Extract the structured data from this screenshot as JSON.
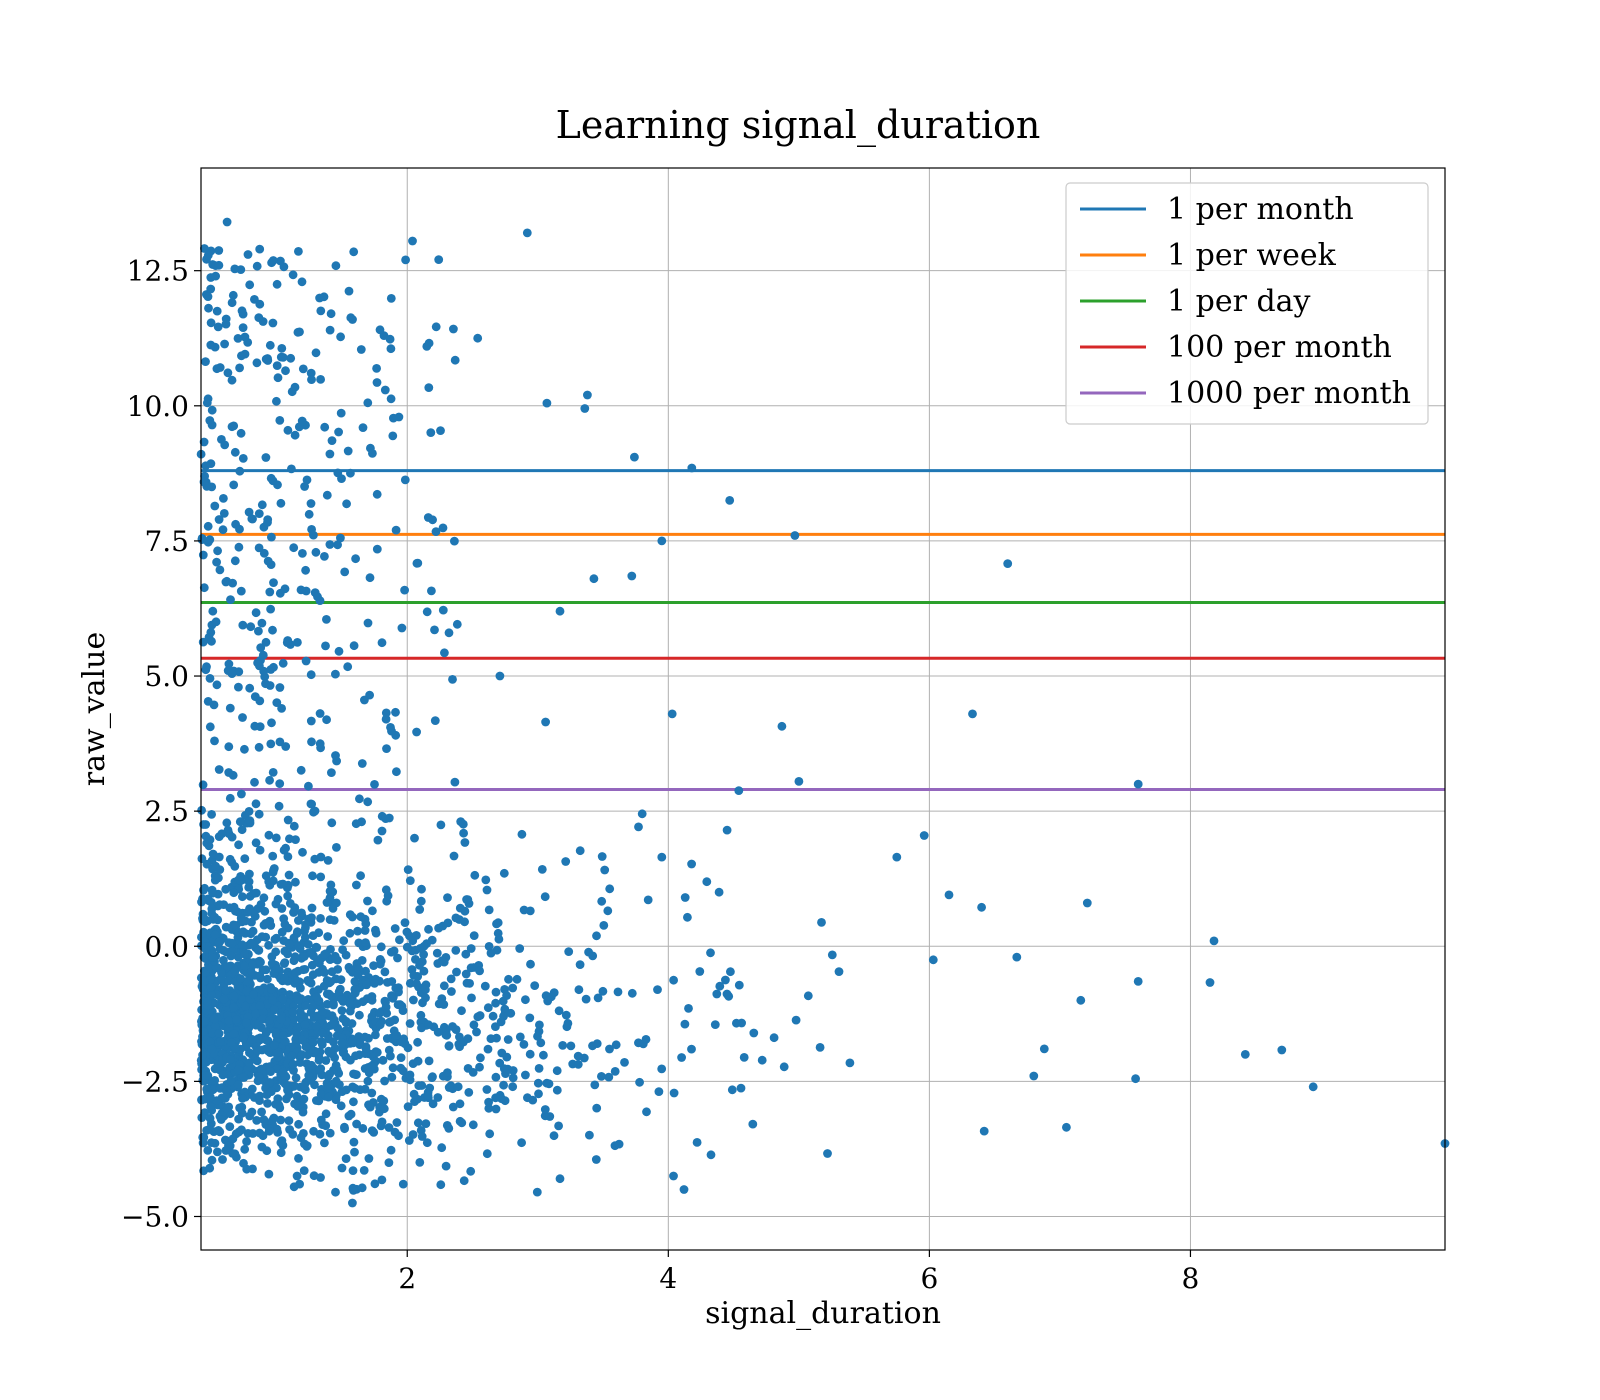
{
  "chart_data": {
    "type": "scatter",
    "title": "Learning signal_duration",
    "xlabel": "signal_duration",
    "ylabel": "raw_value",
    "xlim": [
      0.42,
      9.95
    ],
    "ylim": [
      -5.62,
      14.4
    ],
    "xticks": [
      2,
      4,
      6,
      8
    ],
    "xtick_labels": [
      "2",
      "4",
      "6",
      "8"
    ],
    "yticks": [
      -5.0,
      -2.5,
      0.0,
      2.5,
      5.0,
      7.5,
      10.0,
      12.5
    ],
    "ytick_labels": [
      "−5.0",
      "−2.5",
      "0.0",
      "2.5",
      "5.0",
      "7.5",
      "10.0",
      "12.5"
    ],
    "grid": true,
    "legend_position": "top-right",
    "scatter_color": "#1f77b4",
    "point_generator": {
      "count": 2200,
      "seed": 20240,
      "note_free": true
    },
    "reference_lines": [
      {
        "name": "1 per month",
        "y": 8.8,
        "color": "#1f77b4"
      },
      {
        "name": "1 per week",
        "y": 7.62,
        "color": "#ff7f0e"
      },
      {
        "name": "1 per day",
        "y": 6.36,
        "color": "#2ca02c"
      },
      {
        "name": "100 per month",
        "y": 5.33,
        "color": "#d62728"
      },
      {
        "name": "1000 per month",
        "y": 2.9,
        "color": "#9467bd"
      }
    ],
    "highlighted_points": [
      [
        2.92,
        13.2
      ],
      [
        2.04,
        13.05
      ],
      [
        1.59,
        12.85
      ],
      [
        0.87,
        12.9
      ],
      [
        0.78,
        12.8
      ],
      [
        0.62,
        13.4
      ],
      [
        3.07,
        10.05
      ],
      [
        3.36,
        9.95
      ],
      [
        3.38,
        10.2
      ],
      [
        2.54,
        11.25
      ],
      [
        2.15,
        11.1
      ],
      [
        3.74,
        9.05
      ],
      [
        4.18,
        8.85
      ],
      [
        4.47,
        8.25
      ],
      [
        3.95,
        7.5
      ],
      [
        4.97,
        7.6
      ],
      [
        6.6,
        7.08
      ],
      [
        3.43,
        6.8
      ],
      [
        3.72,
        6.85
      ],
      [
        3.17,
        6.2
      ],
      [
        2.32,
        5.8
      ],
      [
        4.03,
        4.3
      ],
      [
        6.33,
        4.3
      ],
      [
        4.87,
        4.07
      ],
      [
        3.06,
        4.15
      ],
      [
        2.71,
        5.0
      ],
      [
        5.0,
        3.05
      ],
      [
        7.6,
        3.0
      ],
      [
        4.54,
        2.88
      ],
      [
        3.8,
        2.45
      ],
      [
        5.96,
        2.05
      ],
      [
        5.75,
        1.65
      ],
      [
        4.45,
        2.15
      ],
      [
        3.95,
        1.65
      ],
      [
        7.21,
        0.8
      ],
      [
        6.15,
        0.95
      ],
      [
        6.4,
        0.72
      ],
      [
        8.18,
        0.1
      ],
      [
        6.67,
        -0.2
      ],
      [
        6.03,
        -0.25
      ],
      [
        7.6,
        -0.65
      ],
      [
        8.15,
        -0.67
      ],
      [
        7.16,
        -1.0
      ],
      [
        6.88,
        -1.9
      ],
      [
        8.42,
        -2.0
      ],
      [
        8.7,
        -1.92
      ],
      [
        6.8,
        -2.4
      ],
      [
        7.58,
        -2.45
      ],
      [
        8.94,
        -2.6
      ],
      [
        7.05,
        -3.35
      ],
      [
        6.42,
        -3.42
      ],
      [
        9.95,
        -3.65
      ],
      [
        4.12,
        -4.5
      ],
      [
        4.04,
        -4.25
      ],
      [
        3.17,
        -4.3
      ],
      [
        1.58,
        -4.75
      ],
      [
        1.45,
        -4.55
      ],
      [
        1.97,
        -4.4
      ]
    ]
  }
}
